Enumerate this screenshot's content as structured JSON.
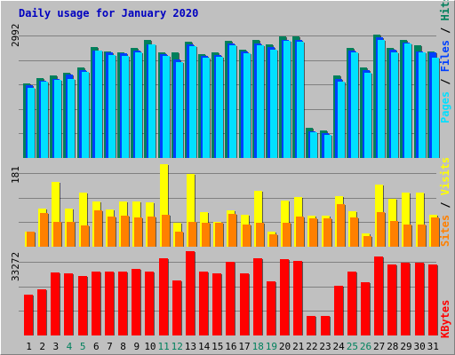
{
  "title": "Daily usage for January 2020",
  "colors": {
    "background": "#c0c0c0",
    "title": "#0000c0",
    "hits": "#00805c",
    "files": "#0040ff",
    "pages": "#00e0ff",
    "visits": "#ffff00",
    "sites": "#ff8000",
    "kbytes": "#ff0000",
    "weekend_label": "#00805c",
    "weekday_label": "#000000"
  },
  "chart_data": [
    {
      "type": "bar",
      "panel": "hits-files-pages",
      "max_label": "2992",
      "legend": [
        "Pages",
        "Files",
        "Hits"
      ],
      "categories": [
        "1",
        "2",
        "3",
        "4",
        "5",
        "6",
        "7",
        "8",
        "9",
        "10",
        "11",
        "12",
        "13",
        "14",
        "15",
        "16",
        "17",
        "18",
        "19",
        "20",
        "21",
        "22",
        "23",
        "24",
        "25",
        "26",
        "27",
        "28",
        "29",
        "30",
        "31"
      ],
      "ylim": [
        0,
        2992
      ],
      "series": [
        {
          "name": "Hits",
          "values": [
            1830,
            1950,
            2010,
            2090,
            2210,
            2710,
            2600,
            2580,
            2690,
            2890,
            2590,
            2580,
            2830,
            2540,
            2570,
            2870,
            2640,
            2880,
            2770,
            2980,
            2960,
            730,
            680,
            2010,
            2690,
            2210,
            3020,
            2680,
            2890,
            2760,
            2600
          ]
        },
        {
          "name": "Files",
          "values": [
            1770,
            1890,
            1930,
            2030,
            2150,
            2630,
            2590,
            2550,
            2630,
            2780,
            2540,
            2400,
            2770,
            2500,
            2520,
            2790,
            2600,
            2800,
            2700,
            2890,
            2890,
            660,
            610,
            1930,
            2620,
            2140,
            2940,
            2640,
            2820,
            2600,
            2590
          ]
        },
        {
          "name": "Pages",
          "values": [
            1720,
            1860,
            1900,
            1940,
            2100,
            2620,
            2510,
            2500,
            2590,
            2770,
            2500,
            2340,
            2740,
            2450,
            2480,
            2760,
            2560,
            2750,
            2650,
            2860,
            2850,
            620,
            560,
            1860,
            2590,
            2090,
            2880,
            2590,
            2800,
            2580,
            2450
          ]
        }
      ]
    },
    {
      "type": "bar",
      "panel": "visits-sites",
      "max_label": "181",
      "legend": [
        "Sites",
        "Visits"
      ],
      "categories": [
        "1",
        "2",
        "3",
        "4",
        "5",
        "6",
        "7",
        "8",
        "9",
        "10",
        "11",
        "12",
        "13",
        "14",
        "15",
        "16",
        "17",
        "18",
        "19",
        "20",
        "21",
        "22",
        "23",
        "24",
        "25",
        "26",
        "27",
        "28",
        "29",
        "30",
        "31"
      ],
      "ylim": [
        0,
        181
      ],
      "series": [
        {
          "name": "Visits",
          "values": [
            34,
            83,
            142,
            84,
            118,
            100,
            81,
            99,
            99,
            98,
            181,
            52,
            159,
            76,
            54,
            80,
            71,
            122,
            33,
            102,
            109,
            69,
            68,
            110,
            77,
            30,
            136,
            106,
            118,
            119,
            70
          ]
        },
        {
          "name": "Sites",
          "values": [
            34,
            74,
            54,
            54,
            46,
            79,
            67,
            68,
            64,
            66,
            70,
            33,
            54,
            52,
            52,
            72,
            49,
            53,
            28,
            53,
            67,
            62,
            62,
            93,
            64,
            24,
            76,
            56,
            48,
            48,
            64
          ]
        }
      ]
    },
    {
      "type": "bar",
      "panel": "kbytes",
      "max_label": "33272",
      "legend": [
        "KBytes"
      ],
      "categories": [
        "1",
        "2",
        "3",
        "4",
        "5",
        "6",
        "7",
        "8",
        "9",
        "10",
        "11",
        "12",
        "13",
        "14",
        "15",
        "16",
        "17",
        "18",
        "19",
        "20",
        "21",
        "22",
        "23",
        "24",
        "25",
        "26",
        "27",
        "28",
        "29",
        "30",
        "31"
      ],
      "ylim": [
        0,
        33272
      ],
      "series": [
        {
          "name": "KBytes",
          "values": [
            16300,
            18700,
            25500,
            25200,
            24000,
            25600,
            25600,
            25900,
            26700,
            25800,
            31200,
            22200,
            34000,
            25600,
            25000,
            29700,
            24900,
            31300,
            22000,
            30600,
            30100,
            7700,
            7700,
            20000,
            25600,
            21600,
            31800,
            28700,
            29300,
            29300,
            28700
          ]
        }
      ]
    }
  ],
  "day_labels": [
    "1",
    "2",
    "3",
    "4",
    "5",
    "6",
    "7",
    "8",
    "9",
    "10",
    "11",
    "12",
    "13",
    "14",
    "15",
    "16",
    "17",
    "18",
    "19",
    "20",
    "21",
    "22",
    "23",
    "24",
    "25",
    "26",
    "27",
    "28",
    "29",
    "30",
    "31"
  ],
  "weekend_days": [
    4,
    5,
    11,
    12,
    18,
    19,
    25,
    26
  ]
}
